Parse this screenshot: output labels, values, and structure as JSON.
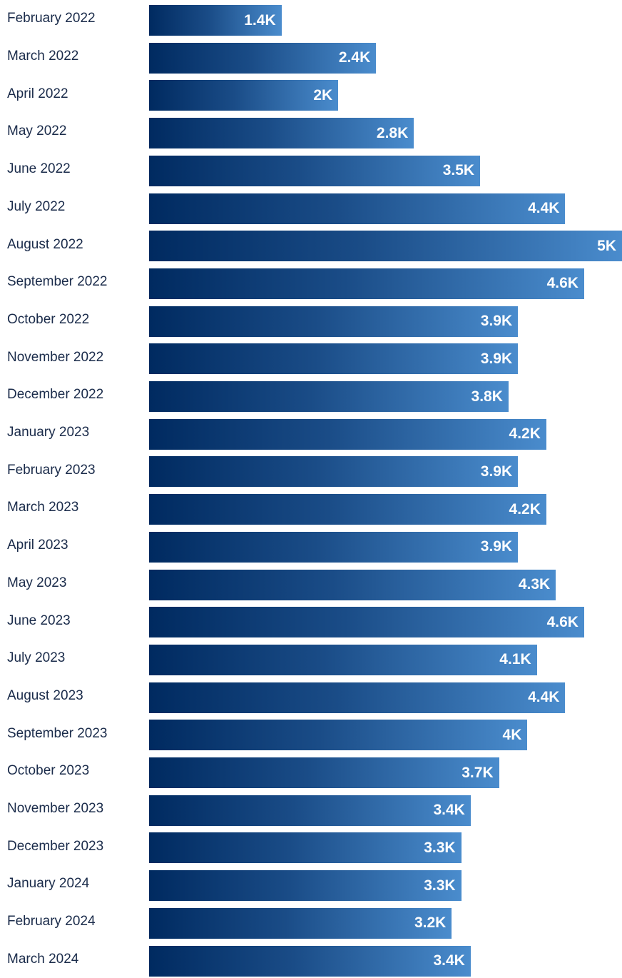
{
  "chart_data": {
    "type": "bar",
    "orientation": "horizontal",
    "title": "",
    "xlabel": "",
    "ylabel": "",
    "grid": false,
    "legend": "none",
    "xlim": [
      0,
      5000
    ],
    "colors": {
      "bar_start": "#002a60",
      "bar_end": "#4a8ccd",
      "label_text": "#1a2b4a",
      "value_text": "#ffffff"
    },
    "categories": [
      "February 2022",
      "March 2022",
      "April 2022",
      "May 2022",
      "June 2022",
      "July 2022",
      "August 2022",
      "September 2022",
      "October 2022",
      "November 2022",
      "December 2022",
      "January 2023",
      "February 2023",
      "March 2023",
      "April 2023",
      "May 2023",
      "June 2023",
      "July 2023",
      "August 2023",
      "September 2023",
      "October 2023",
      "November 2023",
      "December 2023",
      "January 2024",
      "February 2024",
      "March 2024"
    ],
    "values": [
      1400,
      2400,
      2000,
      2800,
      3500,
      4400,
      5000,
      4600,
      3900,
      3900,
      3800,
      4200,
      3900,
      4200,
      3900,
      4300,
      4600,
      4100,
      4400,
      4000,
      3700,
      3400,
      3300,
      3300,
      3200,
      3400
    ],
    "value_labels": [
      "1.4K",
      "2.4K",
      "2K",
      "2.8K",
      "3.5K",
      "4.4K",
      "5K",
      "4.6K",
      "3.9K",
      "3.9K",
      "3.8K",
      "4.2K",
      "3.9K",
      "4.2K",
      "3.9K",
      "4.3K",
      "4.6K",
      "4.1K",
      "4.4K",
      "4K",
      "3.7K",
      "3.4K",
      "3.3K",
      "3.3K",
      "3.2K",
      "3.4K"
    ]
  }
}
